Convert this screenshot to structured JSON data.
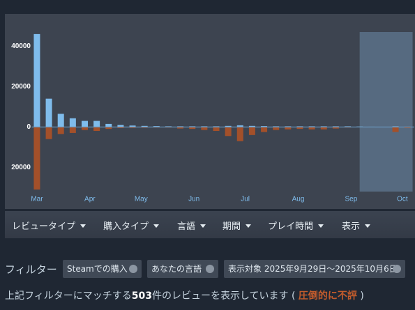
{
  "chart_data": {
    "type": "bar",
    "x": [
      0,
      7,
      14,
      21,
      28,
      35,
      42,
      49,
      56,
      63,
      70,
      77,
      84,
      91,
      98,
      105,
      112,
      119,
      126,
      133,
      140,
      147,
      154,
      161,
      168,
      175,
      182,
      189,
      196,
      203,
      210,
      217
    ],
    "series": [
      {
        "name": "positive",
        "color": "#7fbcec",
        "values": [
          46000,
          14000,
          6500,
          4300,
          3000,
          3000,
          1500,
          1000,
          700,
          500,
          400,
          300,
          300,
          300,
          300,
          300,
          500,
          800,
          500,
          400,
          300,
          300,
          300,
          300,
          300,
          300,
          300,
          200,
          100,
          0,
          300,
          100
        ]
      },
      {
        "name": "negative",
        "color": "#a3502a",
        "values": [
          -31000,
          -6000,
          -3500,
          -3000,
          -1500,
          -2000,
          -1000,
          -600,
          -500,
          -400,
          -300,
          -300,
          -800,
          -1000,
          -1500,
          -2000,
          -4500,
          -7000,
          -4000,
          -2500,
          -1500,
          -1200,
          -1000,
          -1200,
          -1200,
          -800,
          -300,
          -100,
          -100,
          0,
          -2500,
          -500
        ]
      }
    ],
    "xlim": [
      -3,
      221
    ],
    "xticks": [
      {
        "value": 0,
        "label": "Mar"
      },
      {
        "value": 31,
        "label": "Apr"
      },
      {
        "value": 61,
        "label": "May"
      },
      {
        "value": 92,
        "label": "Jun"
      },
      {
        "value": 122,
        "label": "Jul"
      },
      {
        "value": 153,
        "label": "Aug"
      },
      {
        "value": 184,
        "label": "Sep"
      },
      {
        "value": 214,
        "label": "Oct"
      }
    ],
    "ylim": [
      -32000,
      47000
    ],
    "yticks": [
      40000,
      20000,
      0,
      {
        "value": -20000,
        "label": "20000"
      }
    ],
    "highlight": [
      189,
      220
    ]
  },
  "menu": [
    "レビュータイプ",
    "購入タイプ",
    "言語",
    "期間",
    "プレイ時間",
    "表示"
  ],
  "filters": {
    "label": "フィルター",
    "chips": [
      "Steamでの購入",
      "あなたの言語",
      "表示対象 2025年9月29日～2025年10月6日"
    ]
  },
  "summary": {
    "prefix": "上記フィルターにマッチする",
    "count": "503",
    "suffix": "件のレビューを表示しています (",
    "rating": "圧倒的に不評",
    "close": ")"
  }
}
